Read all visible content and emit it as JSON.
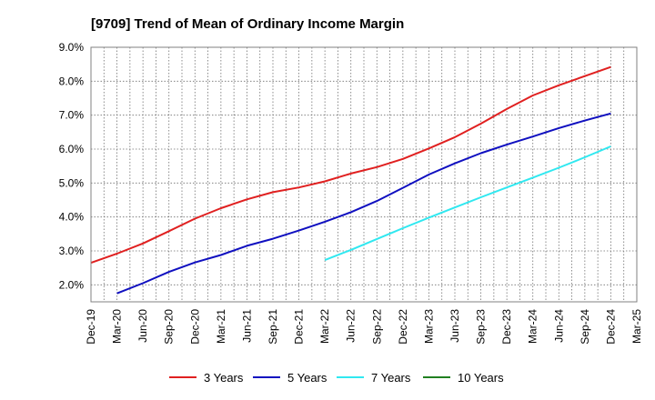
{
  "chart_data": {
    "type": "line",
    "title": "[9709]  Trend of Mean of Ordinary Income Margin",
    "xlabel": "",
    "ylabel": "",
    "y_unit": "%",
    "ylim": [
      1.5,
      9.0
    ],
    "y_ticks": [
      "2.0%",
      "3.0%",
      "4.0%",
      "5.0%",
      "6.0%",
      "7.0%",
      "8.0%",
      "9.0%"
    ],
    "y_tick_values": [
      2.0,
      3.0,
      4.0,
      5.0,
      6.0,
      7.0,
      8.0,
      9.0
    ],
    "x_ticks": [
      "Dec-19",
      "Mar-20",
      "Jun-20",
      "Sep-20",
      "Dec-20",
      "Mar-21",
      "Jun-21",
      "Sep-21",
      "Dec-21",
      "Mar-22",
      "Jun-22",
      "Sep-22",
      "Dec-22",
      "Mar-23",
      "Jun-23",
      "Sep-23",
      "Dec-23",
      "Mar-24",
      "Jun-24",
      "Sep-24",
      "Dec-24",
      "Mar-25"
    ],
    "grid": true,
    "legend_position": "bottom",
    "series": [
      {
        "name": "3 Years",
        "color": "#e02020",
        "points": [
          [
            "Dec-19",
            2.65
          ],
          [
            "Mar-20",
            2.92
          ],
          [
            "Jun-20",
            3.22
          ],
          [
            "Sep-20",
            3.58
          ],
          [
            "Dec-20",
            3.95
          ],
          [
            "Mar-21",
            4.26
          ],
          [
            "Jun-21",
            4.52
          ],
          [
            "Sep-21",
            4.73
          ],
          [
            "Dec-21",
            4.87
          ],
          [
            "Mar-22",
            5.05
          ],
          [
            "Jun-22",
            5.28
          ],
          [
            "Sep-22",
            5.47
          ],
          [
            "Dec-22",
            5.71
          ],
          [
            "Mar-23",
            6.02
          ],
          [
            "Jun-23",
            6.35
          ],
          [
            "Sep-23",
            6.75
          ],
          [
            "Dec-23",
            7.18
          ],
          [
            "Mar-24",
            7.58
          ],
          [
            "Jun-24",
            7.88
          ],
          [
            "Sep-24",
            8.15
          ],
          [
            "Dec-24",
            8.42
          ]
        ]
      },
      {
        "name": "5 Years",
        "color": "#1010c0",
        "points": [
          [
            "Mar-20",
            1.75
          ],
          [
            "Jun-20",
            2.05
          ],
          [
            "Sep-20",
            2.38
          ],
          [
            "Dec-20",
            2.66
          ],
          [
            "Mar-21",
            2.88
          ],
          [
            "Jun-21",
            3.15
          ],
          [
            "Sep-21",
            3.36
          ],
          [
            "Dec-21",
            3.6
          ],
          [
            "Mar-22",
            3.86
          ],
          [
            "Jun-22",
            4.14
          ],
          [
            "Sep-22",
            4.47
          ],
          [
            "Dec-22",
            4.86
          ],
          [
            "Mar-23",
            5.25
          ],
          [
            "Jun-23",
            5.58
          ],
          [
            "Sep-23",
            5.88
          ],
          [
            "Dec-23",
            6.13
          ],
          [
            "Mar-24",
            6.37
          ],
          [
            "Jun-24",
            6.62
          ],
          [
            "Sep-24",
            6.84
          ],
          [
            "Dec-24",
            7.05
          ]
        ]
      },
      {
        "name": "7 Years",
        "color": "#30e8f0",
        "points": [
          [
            "Mar-22",
            2.73
          ],
          [
            "Jun-22",
            3.03
          ],
          [
            "Sep-22",
            3.35
          ],
          [
            "Dec-22",
            3.67
          ],
          [
            "Mar-23",
            3.98
          ],
          [
            "Jun-23",
            4.28
          ],
          [
            "Sep-23",
            4.58
          ],
          [
            "Dec-23",
            4.87
          ],
          [
            "Mar-24",
            5.16
          ],
          [
            "Jun-24",
            5.45
          ],
          [
            "Sep-24",
            5.76
          ],
          [
            "Dec-24",
            6.08
          ]
        ]
      },
      {
        "name": "10 Years",
        "color": "#208020",
        "points": []
      }
    ]
  }
}
